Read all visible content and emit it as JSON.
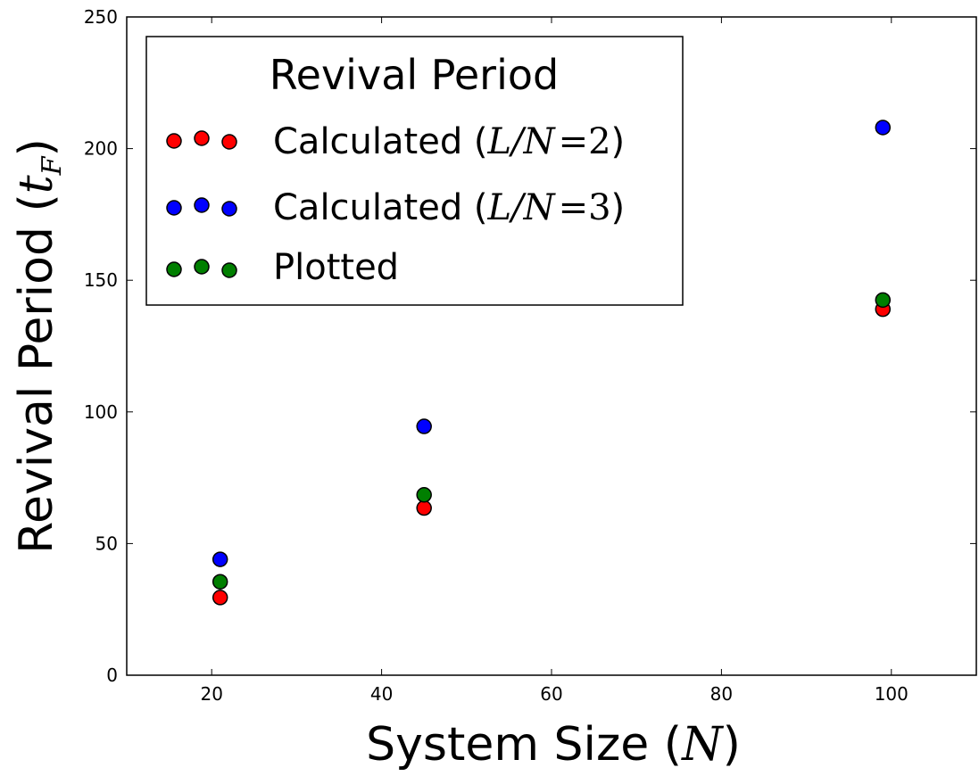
{
  "chart_data": {
    "type": "scatter",
    "xlabel": "System Size (",
    "xlabel_var": "N",
    "xlabel_close": ")",
    "ylabel": "Revival Period (",
    "ylabel_var": "t",
    "ylabel_sub": "F",
    "ylabel_close": ")",
    "xlim": [
      10,
      110
    ],
    "ylim": [
      0,
      250
    ],
    "xticks": [
      20,
      40,
      60,
      80,
      100
    ],
    "yticks": [
      0,
      50,
      100,
      150,
      200,
      250
    ],
    "grid": false,
    "legend": {
      "placement": "top-left",
      "title": "Revival Period",
      "entries": [
        {
          "prefix": "Calculated (",
          "math": "L/N",
          "eq": "=",
          "num": "2",
          "suffix": ")"
        },
        {
          "prefix": "Calculated (",
          "math": "L/N",
          "eq": "=",
          "num": "3",
          "suffix": ")"
        },
        {
          "prefix": "Plotted",
          "math": "",
          "eq": "",
          "num": "",
          "suffix": ""
        }
      ]
    },
    "series": [
      {
        "color": "#ff0000",
        "points": [
          {
            "x": 21,
            "y": 29.5
          },
          {
            "x": 45,
            "y": 63.5
          },
          {
            "x": 99,
            "y": 139
          }
        ]
      },
      {
        "color": "#0000ff",
        "points": [
          {
            "x": 21,
            "y": 44
          },
          {
            "x": 45,
            "y": 94.5
          },
          {
            "x": 99,
            "y": 208
          }
        ]
      },
      {
        "color": "#007f00",
        "points": [
          {
            "x": 21,
            "y": 35.5
          },
          {
            "x": 45,
            "y": 68.5
          },
          {
            "x": 99,
            "y": 142.5
          }
        ]
      }
    ]
  }
}
